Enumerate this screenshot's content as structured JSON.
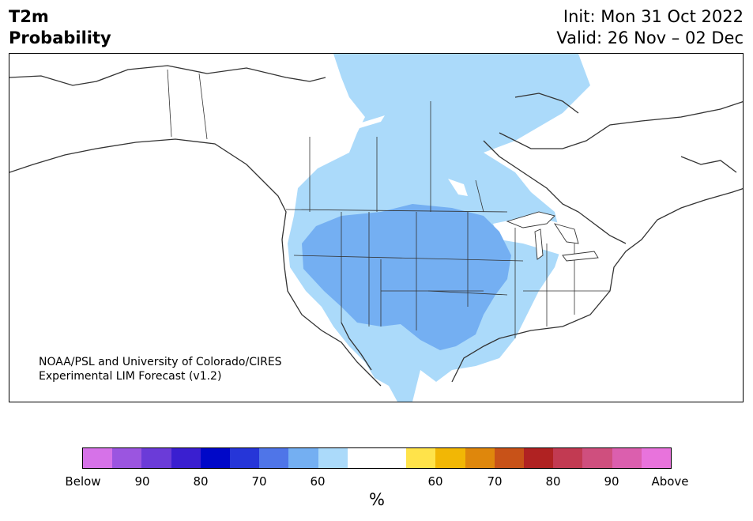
{
  "title": {
    "variable": "T2m",
    "subtitle": "Probability",
    "init": "Init: Mon 31 Oct 2022",
    "valid": "Valid: 26 Nov – 02 Dec"
  },
  "credit": {
    "line1": "NOAA/PSL and University of Colorado/CIRES",
    "line2": "Experimental LIM Forecast (v1.2)"
  },
  "colorbar": {
    "colors": [
      "#d672e8",
      "#9b55e0",
      "#6b3bd8",
      "#3a1fd0",
      "#0008c8",
      "#2636d8",
      "#4f75e8",
      "#74aff2",
      "#abdafa",
      "#ffffff",
      "#ffffff",
      "#ffe34a",
      "#f2b705",
      "#df870c",
      "#c85218",
      "#b02222",
      "#c23a52",
      "#cf4f7e",
      "#db5fae",
      "#e873dc"
    ],
    "ticks": [
      "Below",
      "90",
      "80",
      "70",
      "60",
      "60",
      "70",
      "80",
      "90",
      "Above"
    ],
    "unit": "%"
  },
  "legend_colors": {
    "light_blue": "#abdafa",
    "mid_blue": "#74aff2",
    "coast": "#333333"
  }
}
